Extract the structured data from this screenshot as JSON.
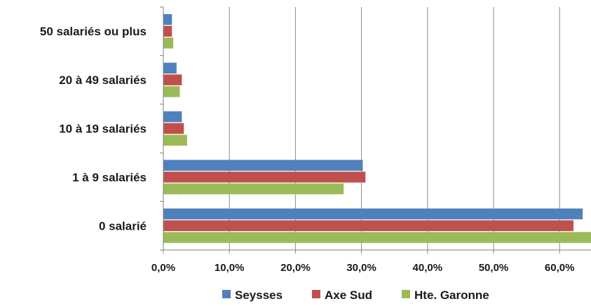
{
  "chart_data": {
    "type": "bar",
    "orientation": "horizontal",
    "title": "",
    "categories": [
      "50 salariés ou plus",
      "20 à 49 salariés",
      "10 à 19 salariés",
      "1 à 9 salariés",
      "0 salarié"
    ],
    "series": [
      {
        "name": "Seysses",
        "color": "#4F81BD",
        "values": [
          1.3,
          2.0,
          2.8,
          30.2,
          63.5
        ]
      },
      {
        "name": "Axe Sud",
        "color": "#C0504D",
        "values": [
          1.3,
          2.8,
          3.1,
          30.6,
          62.1
        ]
      },
      {
        "name": "Hte. Garonne",
        "color": "#9BBB59",
        "values": [
          1.5,
          2.5,
          3.6,
          27.3,
          65.0
        ]
      }
    ],
    "x_ticks": [
      "0,0%",
      "10,0%",
      "20,0%",
      "30,0%",
      "40,0%",
      "50,0%",
      "60,0%"
    ],
    "xlim": [
      0,
      65
    ],
    "grid": true,
    "legend_position": "bottom"
  }
}
